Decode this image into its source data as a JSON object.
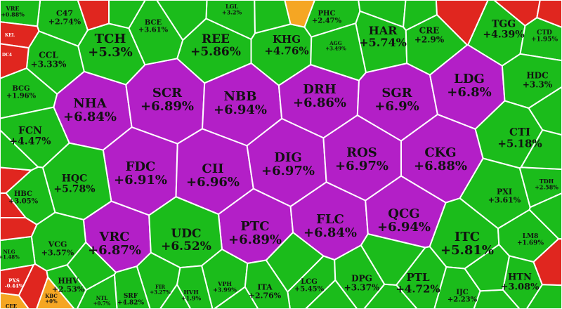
{
  "chart_data": {
    "type": "heatmap",
    "colors": {
      "ceiling": "#b31fc7",
      "up": "#1bbc1b",
      "reference": "#f5a623",
      "down": "#e0261f",
      "border": "#ffffff"
    },
    "stocks": [
      {
        "ticker": "NHA",
        "change": "+6.84%",
        "status": "ceiling"
      },
      {
        "ticker": "SCR",
        "change": "+6.89%",
        "status": "ceiling"
      },
      {
        "ticker": "NBB",
        "change": "+6.94%",
        "status": "ceiling"
      },
      {
        "ticker": "DRH",
        "change": "+6.86%",
        "status": "ceiling"
      },
      {
        "ticker": "SGR",
        "change": "+6.9%",
        "status": "ceiling"
      },
      {
        "ticker": "LDG",
        "change": "+6.8%",
        "status": "ceiling"
      },
      {
        "ticker": "FDC",
        "change": "+6.91%",
        "status": "ceiling"
      },
      {
        "ticker": "CII",
        "change": "+6.96%",
        "status": "ceiling"
      },
      {
        "ticker": "DIG",
        "change": "+6.97%",
        "status": "ceiling"
      },
      {
        "ticker": "ROS",
        "change": "+6.97%",
        "status": "ceiling"
      },
      {
        "ticker": "CKG",
        "change": "+6.88%",
        "status": "ceiling"
      },
      {
        "ticker": "PTC",
        "change": "+6.89%",
        "status": "ceiling"
      },
      {
        "ticker": "FLC",
        "change": "+6.84%",
        "status": "ceiling"
      },
      {
        "ticker": "QCG",
        "change": "+6.94%",
        "status": "ceiling"
      },
      {
        "ticker": "VRC",
        "change": "+6.87%",
        "status": "ceiling"
      },
      {
        "ticker": "TCH",
        "change": "+5.3%",
        "status": "up"
      },
      {
        "ticker": "REE",
        "change": "+5.86%",
        "status": "up"
      },
      {
        "ticker": "KHG",
        "change": "+4.76%",
        "status": "up"
      },
      {
        "ticker": "HAR",
        "change": "+5.74%",
        "status": "up"
      },
      {
        "ticker": "TGG",
        "change": "+4.39%",
        "status": "up"
      },
      {
        "ticker": "C47",
        "change": "+2.74%",
        "status": "up"
      },
      {
        "ticker": "BCE",
        "change": "+3.61%",
        "status": "up"
      },
      {
        "ticker": "LGL",
        "change": "+3.2%",
        "status": "up"
      },
      {
        "ticker": "PHC",
        "change": "+2.47%",
        "status": "up"
      },
      {
        "ticker": "CRE",
        "change": "+2.9%",
        "status": "up"
      },
      {
        "ticker": "CTD",
        "change": "+1.95%",
        "status": "up"
      },
      {
        "ticker": "CCL",
        "change": "+3.33%",
        "status": "up"
      },
      {
        "ticker": "AGG",
        "change": "+3.49%",
        "status": "up"
      },
      {
        "ticker": "BCG",
        "change": "+1.96%",
        "status": "up"
      },
      {
        "ticker": "HDC",
        "change": "+3.3%",
        "status": "up"
      },
      {
        "ticker": "FCN",
        "change": "+4.47%",
        "status": "up"
      },
      {
        "ticker": "CTI",
        "change": "+5.18%",
        "status": "up"
      },
      {
        "ticker": "HQC",
        "change": "+5.78%",
        "status": "up"
      },
      {
        "ticker": "HBC",
        "change": "+3.05%",
        "status": "up"
      },
      {
        "ticker": "PXI",
        "change": "+3.61%",
        "status": "up"
      },
      {
        "ticker": "TDH",
        "change": "+2.58%",
        "status": "up"
      },
      {
        "ticker": "UDC",
        "change": "+6.52%",
        "status": "up"
      },
      {
        "ticker": "ITC",
        "change": "+5.81%",
        "status": "up"
      },
      {
        "ticker": "VCG",
        "change": "+3.57%",
        "status": "up"
      },
      {
        "ticker": "LM8",
        "change": "+1.69%",
        "status": "up"
      },
      {
        "ticker": "NLG",
        "change": "+1.48%",
        "status": "up"
      },
      {
        "ticker": "HHV",
        "change": "+2.53%",
        "status": "up"
      },
      {
        "ticker": "VPH",
        "change": "+3.99%",
        "status": "up"
      },
      {
        "ticker": "LCG",
        "change": "+5.45%",
        "status": "up"
      },
      {
        "ticker": "DPG",
        "change": "+3.37%",
        "status": "up"
      },
      {
        "ticker": "PTL",
        "change": "+4.72%",
        "status": "up"
      },
      {
        "ticker": "HTN",
        "change": "+3.08%",
        "status": "up"
      },
      {
        "ticker": "ITA",
        "change": "+2.76%",
        "status": "up"
      },
      {
        "ticker": "IJC",
        "change": "+2.23%",
        "status": "up"
      },
      {
        "ticker": "HVH",
        "change": "+1.9%",
        "status": "up"
      },
      {
        "ticker": "FIR",
        "change": "+3.27%",
        "status": "up"
      },
      {
        "ticker": "SRF",
        "change": "+4.82%",
        "status": "up"
      },
      {
        "ticker": "NTL",
        "change": "+0.7%",
        "status": "up"
      },
      {
        "ticker": "VRE",
        "change": "+0.88%",
        "status": "up"
      },
      {
        "ticker": "KBC",
        "change": "+0%",
        "status": "reference"
      },
      {
        "ticker": "KEL",
        "change": "",
        "status": "down"
      },
      {
        "ticker": "DC4",
        "change": "",
        "status": "down"
      },
      {
        "ticker": "PXS",
        "change": "-0.44%",
        "status": "down"
      },
      {
        "ticker": "CEE",
        "change": "",
        "status": "reference"
      }
    ]
  }
}
